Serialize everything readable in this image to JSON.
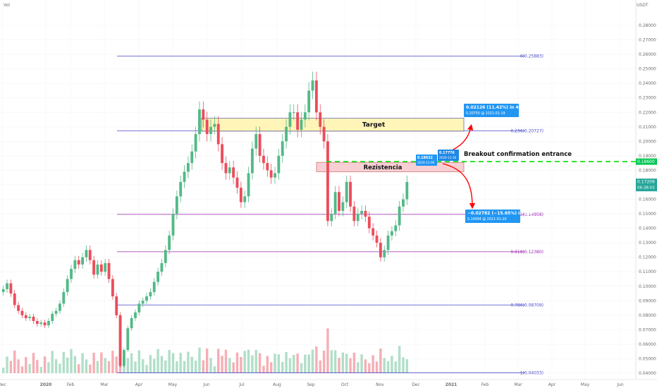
{
  "header": {
    "vol_label": "Vol",
    "currency": "USDT"
  },
  "chart_data": {
    "type": "candlestick",
    "ylim": [
      0.0395,
      0.2865
    ],
    "y_ticks": [
      "0.28000",
      "0.27000",
      "0.26000",
      "0.25000",
      "0.24000",
      "0.23000",
      "0.22000",
      "0.21000",
      "0.20000",
      "0.19000",
      "0.18000",
      "0.17000",
      "0.16000",
      "0.15000",
      "0.14000",
      "0.13000",
      "0.12000",
      "0.11000",
      "0.10000",
      "0.09000",
      "0.08000",
      "0.07000",
      "0.06000",
      "0.05000",
      "0.04000"
    ],
    "x_ticks": [
      "Dec",
      "2020",
      "Feb",
      "Mar",
      "Apr",
      "May",
      "Jun",
      "Jul",
      "Aug",
      "Sep",
      "Oct",
      "Nov",
      "Dec",
      "2021",
      "Feb",
      "Mar",
      "Apr",
      "May",
      "Jun"
    ],
    "colors": {
      "up": "#53b987",
      "down": "#eb4d5c",
      "fib_blue": "#4a4ac8",
      "fib_purple": "#9c27b0",
      "dashed": "#00e000",
      "tip": "#2196f3",
      "current": "#26a69a",
      "arrow": "#ff0000"
    },
    "series": [
      {
        "values": [
          0.098,
          0.102,
          0.095,
          0.087,
          0.083,
          0.08,
          0.078,
          0.079,
          0.076,
          0.074,
          0.075,
          0.073,
          0.076,
          0.081,
          0.083,
          0.088,
          0.096,
          0.105,
          0.112,
          0.118,
          0.115,
          0.12,
          0.125,
          0.118,
          0.108,
          0.115,
          0.11,
          0.116,
          0.105,
          0.093,
          0.08,
          0.045,
          0.056,
          0.071,
          0.078,
          0.082,
          0.088,
          0.09,
          0.093,
          0.096,
          0.103,
          0.11,
          0.116,
          0.125,
          0.135,
          0.15,
          0.162,
          0.172,
          0.179,
          0.185,
          0.193,
          0.205,
          0.222,
          0.215,
          0.205,
          0.21,
          0.212,
          0.198,
          0.185,
          0.178,
          0.182,
          0.175,
          0.168,
          0.158,
          0.162,
          0.178,
          0.195,
          0.205,
          0.19,
          0.185,
          0.18,
          0.175,
          0.178,
          0.19,
          0.2,
          0.21,
          0.22,
          0.22,
          0.208,
          0.215,
          0.22,
          0.235,
          0.242,
          0.22,
          0.21,
          0.2,
          0.145,
          0.15,
          0.165,
          0.152,
          0.158,
          0.172,
          0.155,
          0.145,
          0.15,
          0.152,
          0.148,
          0.14,
          0.135,
          0.13,
          0.12,
          0.125,
          0.135,
          0.138,
          0.142,
          0.155,
          0.16,
          0.172
        ]
      }
    ],
    "current_price": "0.17209",
    "countdown": "06:38:03",
    "dashed_price": "0.18600",
    "fib_levels": [
      {
        "label": "0(0.25883)",
        "value": 0.25883,
        "color": "#4a4ac8"
      },
      {
        "label": "0.236(0.20727)",
        "value": 0.20727,
        "color": "#4a4ac8"
      },
      {
        "label": "0.5(0.14958)",
        "value": 0.14958,
        "color": "#9c27b0"
      },
      {
        "label": "0.618(0.12380)",
        "value": 0.1238,
        "color": "#9c27b0"
      },
      {
        "label": "0.786(0.08709)",
        "value": 0.08709,
        "color": "#4a4ac8"
      },
      {
        "label": "1(0.04033)",
        "value": 0.04033,
        "color": "#4a4ac8"
      }
    ],
    "target": {
      "label": "Target",
      "low": 0.207,
      "high": 0.216
    },
    "resistance": {
      "label": "Rezistencia",
      "low": 0.179,
      "high": 0.1855
    },
    "breakout_text": "Breakout confirmation entrance",
    "tooltip_up": {
      "line1": "0.02126 (11.42%) in 44d",
      "line2": "0.20750 @ 2021-01-19"
    },
    "tooltip_down": {
      "line1": "−0.02782 (−15.65%) in 25d",
      "line2": "0.14994 @ 2021-01-20"
    },
    "tooltip_small1": {
      "line1": "0.18632",
      "line2": "2020-12-06"
    },
    "tooltip_small2": {
      "line1": "0.17776",
      "line2": "2020-12-26"
    }
  }
}
